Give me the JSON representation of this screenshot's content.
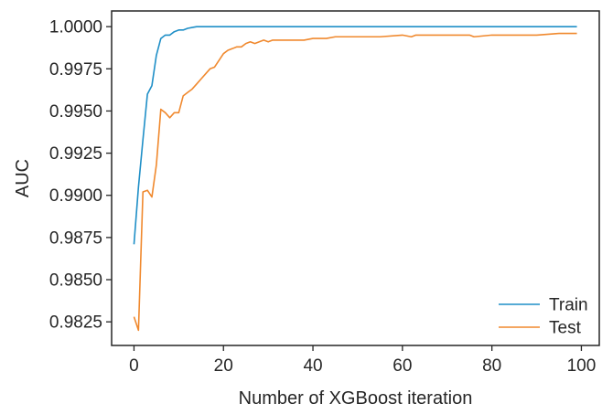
{
  "chart_data": {
    "type": "line",
    "title": "",
    "xlabel": "Number of XGBoost iteration",
    "ylabel": "AUC",
    "xlim": [
      -5,
      104
    ],
    "ylim": [
      0.9811,
      1.00093
    ],
    "xticks": [
      0,
      20,
      40,
      60,
      80,
      100
    ],
    "xtick_labels": [
      "0",
      "20",
      "40",
      "60",
      "80",
      "100"
    ],
    "yticks": [
      0.9825,
      0.985,
      0.9875,
      0.99,
      0.9925,
      0.995,
      0.9975,
      1.0
    ],
    "ytick_labels": [
      "0.9825",
      "0.9850",
      "0.9875",
      "0.9900",
      "0.9925",
      "0.9950",
      "0.9975",
      "1.0000"
    ],
    "grid": false,
    "legend_position": "bottom-right",
    "series": [
      {
        "name": "Train",
        "color": "#1f8fc7",
        "x": [
          0,
          1,
          2,
          3,
          4,
          5,
          6,
          7,
          8,
          9,
          10,
          11,
          12,
          13,
          14,
          15,
          16,
          17,
          20,
          30,
          40,
          50,
          60,
          70,
          80,
          90,
          99
        ],
        "y": [
          0.9871,
          0.9905,
          0.9933,
          0.996,
          0.9965,
          0.9983,
          0.9993,
          0.9995,
          0.9995,
          0.9997,
          0.9998,
          0.9998,
          0.9999,
          0.99995,
          1.0,
          1.0,
          1.0,
          1.0,
          1.0,
          1.0,
          1.0,
          1.0,
          1.0,
          1.0,
          1.0,
          1.0,
          1.0
        ]
      },
      {
        "name": "Test",
        "color": "#f0892e",
        "x": [
          0,
          1,
          2,
          3,
          4,
          5,
          6,
          7,
          8,
          9,
          10,
          11,
          12,
          13,
          14,
          15,
          16,
          17,
          18,
          19,
          20,
          21,
          22,
          23,
          24,
          25,
          26,
          27,
          28,
          29,
          30,
          31,
          32,
          35,
          38,
          40,
          41,
          42,
          43,
          45,
          50,
          55,
          60,
          62,
          63,
          70,
          75,
          76,
          80,
          85,
          90,
          95,
          99
        ],
        "y": [
          0.9828,
          0.982,
          0.9902,
          0.9903,
          0.9899,
          0.9918,
          0.9951,
          0.9949,
          0.9946,
          0.9949,
          0.9949,
          0.9959,
          0.9961,
          0.9963,
          0.9966,
          0.9969,
          0.9972,
          0.9975,
          0.9976,
          0.998,
          0.9984,
          0.9986,
          0.9987,
          0.9988,
          0.9988,
          0.999,
          0.9991,
          0.999,
          0.9991,
          0.9992,
          0.9991,
          0.9992,
          0.9992,
          0.9992,
          0.9992,
          0.9993,
          0.9993,
          0.9993,
          0.9993,
          0.9994,
          0.9994,
          0.9994,
          0.9995,
          0.9994,
          0.9995,
          0.9995,
          0.9995,
          0.9994,
          0.9995,
          0.9995,
          0.9995,
          0.9996,
          0.9996
        ]
      }
    ]
  }
}
